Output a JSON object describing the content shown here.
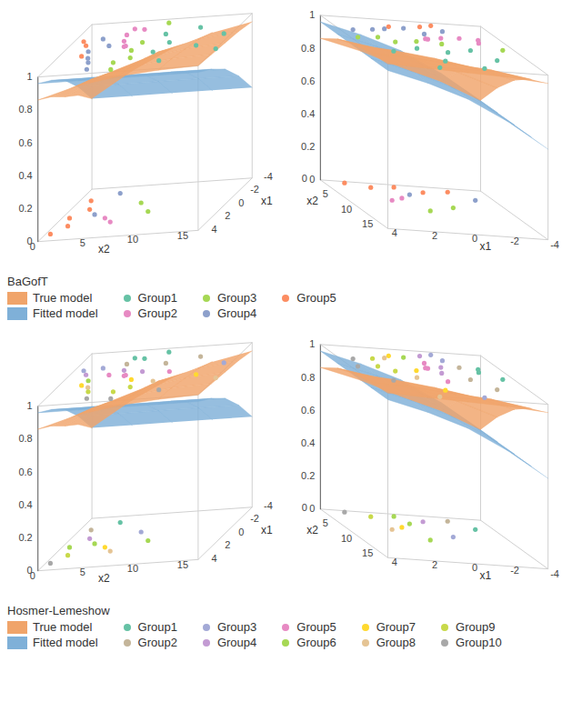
{
  "chart_data": [
    {
      "type": "scatter3d",
      "title": "BaGofT",
      "xlabel": "x1",
      "ylabel": "x2",
      "xlim": [
        -4,
        4
      ],
      "xticks": [
        -4,
        -2,
        0,
        2,
        4
      ],
      "ylim": [
        0,
        16
      ],
      "yticks": [
        0,
        5,
        10,
        15
      ],
      "zlim": [
        0,
        1
      ],
      "zticks": [
        0,
        0.2,
        0.4,
        0.6,
        0.8,
        1
      ],
      "surfaces": [
        {
          "name": "True model",
          "type": "surface",
          "color": "#f0a46a",
          "x": [
            -4,
            -2,
            0,
            2,
            4
          ],
          "y": [
            0,
            4,
            8,
            12,
            16
          ],
          "z": [
            [
              0.55,
              0.7,
              0.82,
              0.9,
              0.95
            ],
            [
              0.65,
              0.78,
              0.88,
              0.94,
              0.97
            ],
            [
              0.72,
              0.84,
              0.92,
              0.96,
              0.98
            ],
            [
              0.8,
              0.89,
              0.95,
              0.98,
              0.99
            ],
            [
              0.86,
              0.93,
              0.97,
              0.99,
              1.0
            ]
          ]
        },
        {
          "name": "Fitted model",
          "type": "surface",
          "color": "#7fb0d8",
          "x": [
            -4,
            -2,
            0,
            2,
            4
          ],
          "y": [
            0,
            4,
            8,
            12,
            16
          ],
          "z": [
            [
              0.55,
              0.55,
              0.55,
              0.55,
              0.55
            ],
            [
              0.7,
              0.7,
              0.7,
              0.7,
              0.7
            ],
            [
              0.82,
              0.82,
              0.82,
              0.82,
              0.82
            ],
            [
              0.9,
              0.9,
              0.9,
              0.9,
              0.9
            ],
            [
              0.96,
              0.96,
              0.96,
              0.96,
              0.96
            ]
          ]
        }
      ],
      "series": [
        {
          "name": "Group1",
          "color": "#66c2a5",
          "points": [
            [
              -1.6,
              9.0,
              1
            ],
            [
              1.2,
              9.6,
              1
            ],
            [
              -0.2,
              10.3,
              1
            ],
            [
              2.7,
              11.2,
              1
            ],
            [
              -2.3,
              12.0,
              1
            ],
            [
              0.6,
              13.5,
              1
            ],
            [
              -1.0,
              15.2,
              1
            ],
            [
              1.4,
              16.0,
              1
            ]
          ]
        },
        {
          "name": "Group2",
          "color": "#e78ac3",
          "points": [
            [
              0.9,
              4.6,
              0
            ],
            [
              -1.9,
              4.9,
              1
            ],
            [
              -0.9,
              5.3,
              1
            ],
            [
              1.6,
              5.6,
              0
            ],
            [
              0.0,
              5.9,
              1
            ],
            [
              -2.6,
              6.2,
              1
            ],
            [
              -2.8,
              5.1,
              1
            ],
            [
              -0.1,
              6.0,
              1
            ]
          ]
        },
        {
          "name": "Group3",
          "color": "#a6d854",
          "points": [
            [
              2.5,
              6.5,
              1
            ],
            [
              -1.2,
              6.8,
              0
            ],
            [
              0.7,
              7.1,
              1
            ],
            [
              -0.5,
              7.4,
              1
            ],
            [
              1.9,
              7.8,
              1
            ],
            [
              -3.4,
              8.1,
              1
            ],
            [
              0.3,
              8.5,
              0
            ],
            [
              3.6,
              7.0,
              1
            ]
          ]
        },
        {
          "name": "Group4",
          "color": "#8da0cb",
          "points": [
            [
              -1.5,
              2.8,
              1
            ],
            [
              0.2,
              3.1,
              0
            ],
            [
              -3.0,
              3.5,
              0
            ],
            [
              2.2,
              3.8,
              1
            ],
            [
              -0.3,
              4.2,
              1
            ],
            [
              3.3,
              4.4,
              1
            ],
            [
              0.4,
              2.6,
              1
            ],
            [
              1.5,
              3.3,
              1
            ]
          ]
        },
        {
          "name": "Group5",
          "color": "#fc8d62",
          "points": [
            [
              -2.1,
              1.2,
              0
            ],
            [
              0.5,
              0.8,
              0
            ],
            [
              1.8,
              1.5,
              0
            ],
            [
              -0.7,
              2.0,
              0
            ],
            [
              2.9,
              0.5,
              0
            ],
            [
              1.1,
              2.4,
              1
            ],
            [
              -0.6,
              1.7,
              1
            ],
            [
              -1.3,
              1.0,
              1
            ]
          ]
        }
      ]
    },
    {
      "type": "scatter3d",
      "title": "Hosmer-Lemeshow",
      "xlabel": "x1",
      "ylabel": "x2",
      "xlim": [
        -4,
        4
      ],
      "xticks": [
        -4,
        -2,
        0,
        2,
        4
      ],
      "ylim": [
        0,
        16
      ],
      "yticks": [
        0,
        5,
        10,
        15
      ],
      "zlim": [
        0,
        1
      ],
      "zticks": [
        0,
        0.2,
        0.4,
        0.6,
        0.8,
        1
      ],
      "surfaces": [
        {
          "name": "True model",
          "type": "surface",
          "color": "#f0a46a",
          "x": [
            -4,
            -2,
            0,
            2,
            4
          ],
          "y": [
            0,
            4,
            8,
            12,
            16
          ],
          "z": [
            [
              0.55,
              0.7,
              0.82,
              0.9,
              0.95
            ],
            [
              0.65,
              0.78,
              0.88,
              0.94,
              0.97
            ],
            [
              0.72,
              0.84,
              0.92,
              0.96,
              0.98
            ],
            [
              0.8,
              0.89,
              0.95,
              0.98,
              0.99
            ],
            [
              0.86,
              0.93,
              0.97,
              0.99,
              1.0
            ]
          ]
        },
        {
          "name": "Fitted model",
          "type": "surface",
          "color": "#7fb0d8",
          "x": [
            -4,
            -2,
            0,
            2,
            4
          ],
          "y": [
            0,
            4,
            8,
            12,
            16
          ],
          "z": [
            [
              0.55,
              0.55,
              0.55,
              0.55,
              0.55
            ],
            [
              0.7,
              0.7,
              0.7,
              0.7,
              0.7
            ],
            [
              0.82,
              0.82,
              0.82,
              0.82,
              0.82
            ],
            [
              0.9,
              0.9,
              0.9,
              0.9,
              0.9
            ],
            [
              0.96,
              0.96,
              0.96,
              0.96,
              0.96
            ]
          ]
        }
      ],
      "series": [
        {
          "name": "Group1",
          "color": "#66c2a5",
          "points": [
            [
              -3.4,
              8.1,
              1
            ],
            [
              -3.0,
              3.5,
              0
            ],
            [
              -2.8,
              5.1,
              1
            ],
            [
              -2.6,
              6.2,
              1
            ]
          ]
        },
        {
          "name": "Group2",
          "color": "#c4b59a",
          "points": [
            [
              -2.3,
              12.0,
              1
            ],
            [
              -2.1,
              1.2,
              0
            ],
            [
              -1.9,
              4.9,
              1
            ],
            [
              -1.6,
              9.0,
              1
            ]
          ]
        },
        {
          "name": "Group3",
          "color": "#a3a9d6",
          "points": [
            [
              -1.5,
              2.8,
              1
            ],
            [
              -1.3,
              1.0,
              1
            ],
            [
              -1.2,
              6.8,
              0
            ],
            [
              -1.0,
              15.2,
              1
            ]
          ]
        },
        {
          "name": "Group4",
          "color": "#c39bd3",
          "points": [
            [
              -0.9,
              5.3,
              1
            ],
            [
              -0.7,
              2.0,
              0
            ],
            [
              -0.6,
              1.7,
              1
            ],
            [
              -0.5,
              7.4,
              1
            ]
          ]
        },
        {
          "name": "Group5",
          "color": "#e78ac3",
          "points": [
            [
              -0.3,
              4.2,
              1
            ],
            [
              -0.2,
              10.3,
              1
            ],
            [
              -0.1,
              6.0,
              1
            ],
            [
              0.0,
              5.9,
              1
            ]
          ]
        },
        {
          "name": "Group6",
          "color": "#a6d854",
          "points": [
            [
              0.2,
              3.1,
              0
            ],
            [
              0.3,
              8.5,
              0
            ],
            [
              0.4,
              2.6,
              1
            ],
            [
              0.5,
              0.8,
              0
            ]
          ]
        },
        {
          "name": "Group7",
          "color": "#ffd92f",
          "points": [
            [
              0.6,
              13.5,
              1
            ],
            [
              0.7,
              7.1,
              1
            ],
            [
              0.9,
              4.6,
              0
            ],
            [
              1.1,
              2.4,
              1
            ]
          ]
        },
        {
          "name": "Group8",
          "color": "#e5c494",
          "points": [
            [
              1.2,
              9.6,
              1
            ],
            [
              1.4,
              16.0,
              1
            ],
            [
              1.5,
              3.3,
              1
            ],
            [
              1.6,
              5.6,
              0
            ]
          ]
        },
        {
          "name": "Group9",
          "color": "#c8d94a",
          "points": [
            [
              1.8,
              1.5,
              0
            ],
            [
              1.9,
              7.8,
              1
            ],
            [
              2.2,
              3.8,
              1
            ],
            [
              2.5,
              6.5,
              1
            ]
          ]
        },
        {
          "name": "Group10",
          "color": "#a8a8a8",
          "points": [
            [
              2.7,
              11.2,
              1
            ],
            [
              2.9,
              0.5,
              0
            ],
            [
              3.3,
              4.4,
              1
            ],
            [
              3.6,
              7.0,
              1
            ]
          ]
        }
      ]
    }
  ]
}
